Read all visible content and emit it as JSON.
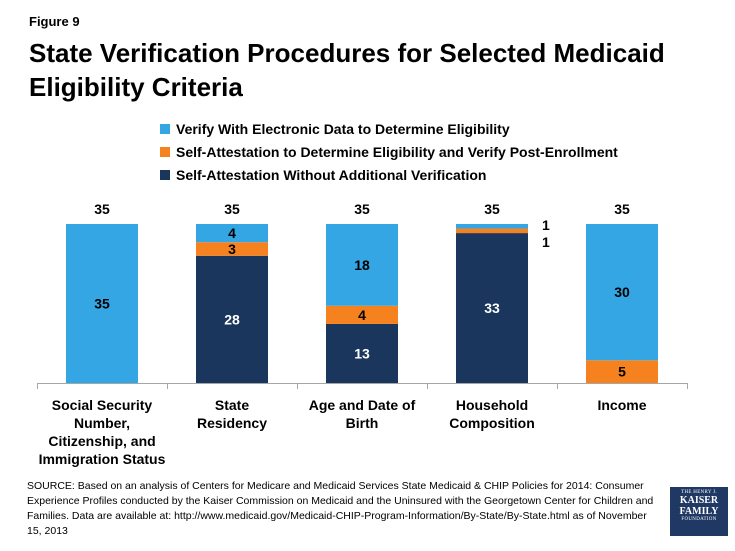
{
  "figure_label": "Figure 9",
  "title": "State Verification Procedures for Selected Medicaid Eligibility Criteria",
  "legend": [
    {
      "label": "Verify With Electronic Data to Determine Eligibility",
      "color": "#33a6e3"
    },
    {
      "label": "Self-Attestation to Determine Eligibility and Verify Post-Enrollment",
      "color": "#f5821f"
    },
    {
      "label": "Self-Attestation Without Additional Verification",
      "color": "#1a365d"
    }
  ],
  "chart_data": {
    "type": "bar",
    "stacked": true,
    "categories": [
      [
        "Social Security",
        "Number,",
        "Citizenship, and",
        "Immigration Status"
      ],
      [
        "State",
        "Residency"
      ],
      [
        "Age and Date of",
        "Birth"
      ],
      [
        "Household",
        "Composition"
      ],
      [
        "Income"
      ]
    ],
    "series": [
      {
        "name": "Self-Attestation Without Additional Verification",
        "color": "#1a365d",
        "values": [
          0,
          28,
          13,
          33,
          0
        ]
      },
      {
        "name": "Self-Attestation to Determine Eligibility and Verify Post-Enrollment",
        "color": "#f5821f",
        "values": [
          0,
          3,
          4,
          1,
          5
        ]
      },
      {
        "name": "Verify With Electronic Data to Determine Eligibility",
        "color": "#33a6e3",
        "values": [
          35,
          4,
          18,
          1,
          30
        ]
      }
    ],
    "totals": [
      35,
      35,
      35,
      35,
      35
    ],
    "ylim": [
      0,
      35
    ],
    "grid": false,
    "legend_position": "top"
  },
  "source": "SOURCE: Based on an analysis of Centers for Medicare and Medicaid Services State Medicaid & CHIP Policies for 2014: Consumer Experience Profiles conducted by the Kaiser Commission on Medicaid and the Uninsured with the Georgetown Center for Children and Families. Data are available at: http://www.medicaid.gov/Medicaid-CHIP-Program-Information/By-State/By-State.html as of November 15, 2013",
  "logo": {
    "line1": "THE HENRY J.",
    "line2": "KAISER",
    "line3": "FAMILY",
    "line4": "FOUNDATION"
  }
}
